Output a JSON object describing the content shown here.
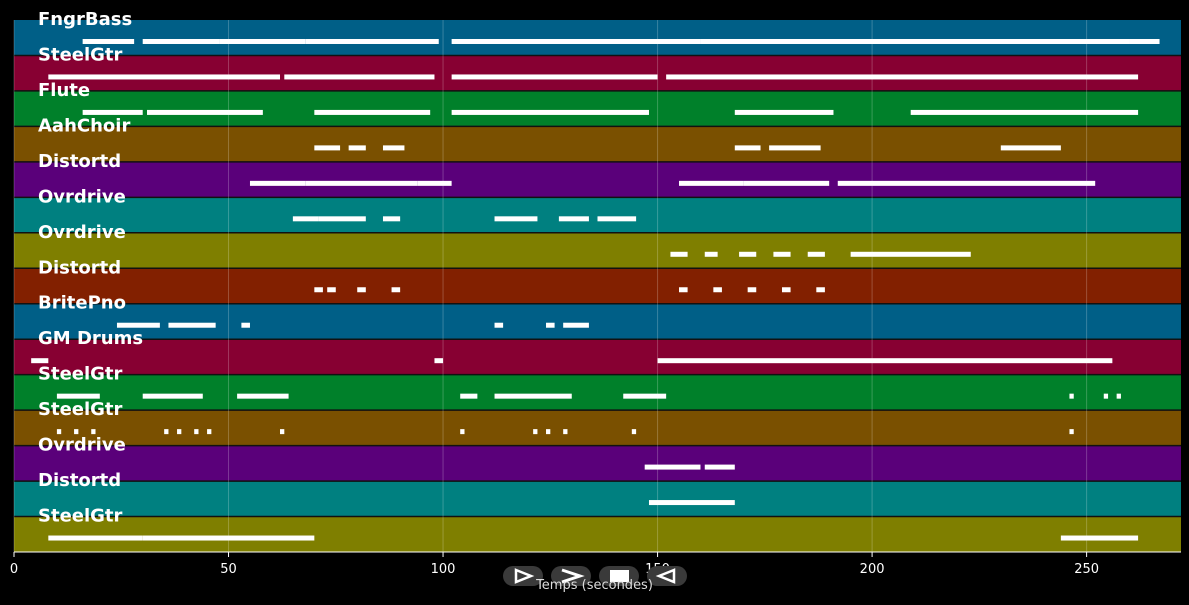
{
  "chart_data": {
    "type": "piano-roll",
    "xlabel": "Temps (secondes)",
    "xlim": [
      0,
      272
    ],
    "xticks": [
      0,
      50,
      100,
      150,
      200,
      250
    ],
    "grid": true,
    "tracks": [
      {
        "name": "FngrBass",
        "color": "#005f87",
        "segments": [
          [
            16,
            28
          ],
          [
            30,
            48
          ],
          [
            48,
            68
          ],
          [
            68,
            99
          ],
          [
            102,
            160
          ],
          [
            160,
            260
          ],
          [
            260,
            267
          ]
        ]
      },
      {
        "name": "SteelGtr",
        "color": "#870032",
        "segments": [
          [
            8,
            62
          ],
          [
            63,
            98
          ],
          [
            102,
            150
          ],
          [
            152,
            262
          ]
        ]
      },
      {
        "name": "Flute",
        "color": "#00802a",
        "segments": [
          [
            16,
            30
          ],
          [
            31,
            58
          ],
          [
            70,
            97
          ],
          [
            102,
            148
          ],
          [
            168,
            191
          ],
          [
            209,
            262
          ]
        ]
      },
      {
        "name": "AahChoir",
        "color": "#7a5000",
        "segments": [
          [
            70,
            76
          ],
          [
            78,
            82
          ],
          [
            86,
            91
          ],
          [
            168,
            174
          ],
          [
            176,
            188
          ],
          [
            230,
            244
          ]
        ]
      },
      {
        "name": "Distortd",
        "color": "#5a007a",
        "segments": [
          [
            55,
            68
          ],
          [
            68,
            94
          ],
          [
            94,
            102
          ],
          [
            155,
            170
          ],
          [
            170,
            190
          ],
          [
            192,
            252
          ]
        ]
      },
      {
        "name": "Ovrdrive",
        "color": "#008080",
        "segments": [
          [
            65,
            71
          ],
          [
            71,
            82
          ],
          [
            86,
            90
          ],
          [
            112,
            122
          ],
          [
            127,
            134
          ],
          [
            136,
            145
          ]
        ]
      },
      {
        "name": "Ovrdrive",
        "color": "#7f7f00",
        "segments": [
          [
            153,
            157
          ],
          [
            161,
            164
          ],
          [
            169,
            173
          ],
          [
            177,
            181
          ],
          [
            185,
            189
          ],
          [
            195,
            223
          ]
        ]
      },
      {
        "name": "Distortd",
        "color": "#822000",
        "segments": [
          [
            70,
            72
          ],
          [
            73,
            75
          ],
          [
            80,
            82
          ],
          [
            88,
            90
          ],
          [
            155,
            157
          ],
          [
            163,
            165
          ],
          [
            171,
            173
          ],
          [
            179,
            181
          ],
          [
            187,
            189
          ]
        ]
      },
      {
        "name": "BritePno",
        "color": "#005f87",
        "segments": [
          [
            24,
            34
          ],
          [
            36,
            47
          ],
          [
            53,
            55
          ],
          [
            112,
            114
          ],
          [
            124,
            126
          ],
          [
            128,
            134
          ]
        ]
      },
      {
        "name": "GM Drums",
        "color": "#870032",
        "segments": [
          [
            4,
            8
          ],
          [
            98,
            100
          ],
          [
            150,
            256
          ]
        ]
      },
      {
        "name": "SteelGtr",
        "color": "#00802a",
        "segments": [
          [
            10,
            20
          ],
          [
            30,
            44
          ],
          [
            52,
            64
          ],
          [
            104,
            108
          ],
          [
            112,
            130
          ],
          [
            142,
            152
          ],
          [
            246,
            247
          ],
          [
            254,
            255
          ],
          [
            257,
            258
          ]
        ]
      },
      {
        "name": "SteelGtr",
        "color": "#7a5000",
        "segments": [
          [
            10,
            11
          ],
          [
            14,
            15
          ],
          [
            18,
            19
          ],
          [
            35,
            36
          ],
          [
            38,
            39
          ],
          [
            42,
            43
          ],
          [
            45,
            46
          ],
          [
            62,
            63
          ],
          [
            104,
            105
          ],
          [
            121,
            122
          ],
          [
            124,
            125
          ],
          [
            128,
            129
          ],
          [
            144,
            145
          ],
          [
            246,
            247
          ]
        ]
      },
      {
        "name": "Ovrdrive",
        "color": "#5a007a",
        "segments": [
          [
            147,
            160
          ],
          [
            161,
            168
          ]
        ]
      },
      {
        "name": "Distortd",
        "color": "#008080",
        "segments": [
          [
            148,
            168
          ]
        ]
      },
      {
        "name": "SteelGtr",
        "color": "#7f7f00",
        "segments": [
          [
            8,
            30
          ],
          [
            30,
            70
          ],
          [
            244,
            262
          ]
        ]
      }
    ]
  },
  "controls": [
    {
      "name": "play-forward-icon",
      "label": "play forward"
    },
    {
      "name": "next-icon",
      "label": "next"
    },
    {
      "name": "stop-icon",
      "label": "stop"
    },
    {
      "name": "play-backward-icon",
      "label": "play backward"
    }
  ]
}
